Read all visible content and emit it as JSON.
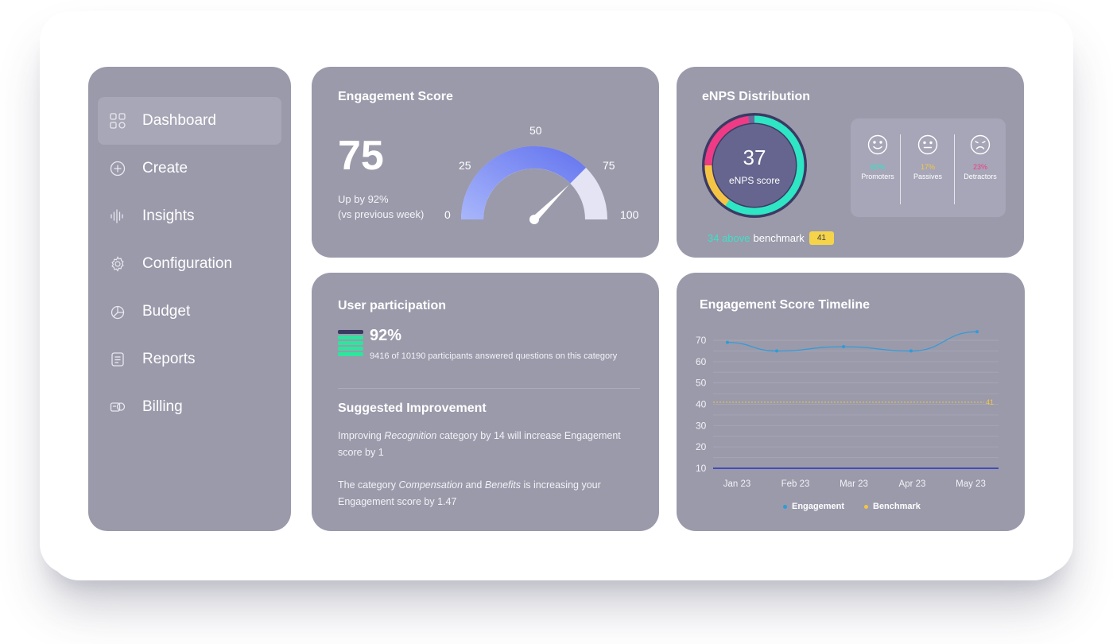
{
  "sidebar": {
    "items": [
      {
        "label": "Dashboard",
        "icon": "grid-icon",
        "active": true
      },
      {
        "label": "Create",
        "icon": "plus-circle-icon"
      },
      {
        "label": "Insights",
        "icon": "waveform-icon"
      },
      {
        "label": "Configuration",
        "icon": "gear-icon"
      },
      {
        "label": "Budget",
        "icon": "pie-chart-icon"
      },
      {
        "label": "Reports",
        "icon": "document-icon"
      },
      {
        "label": "Billing",
        "icon": "wallet-icon"
      }
    ]
  },
  "engagement": {
    "title": "Engagement Score",
    "score": "75",
    "change": "Up by 92%",
    "period": "(vs previous week)",
    "gauge_labels": {
      "min": "0",
      "q1": "25",
      "mid": "50",
      "q3": "75",
      "max": "100"
    },
    "gauge_value": 75
  },
  "enps": {
    "title": "eNPS Distribution",
    "score": "37",
    "score_label": "eNPS score",
    "categories": [
      {
        "pct": "60%",
        "name": "Promoters",
        "color": "#2ee5c4",
        "icon": "smile-icon"
      },
      {
        "pct": "17%",
        "name": "Passives",
        "color": "#f6c445",
        "icon": "neutral-face-icon"
      },
      {
        "pct": "23%",
        "name": "Detractors",
        "color": "#ef3a86",
        "icon": "sad-face-icon"
      }
    ],
    "benchmark_highlight": "34 above",
    "benchmark_text": "benchmark",
    "benchmark_value": "41"
  },
  "participation": {
    "title": "User participation",
    "percent": "92%",
    "description": "9416 of 10190 participants answered questions on this category",
    "suggestion_title": "Suggested Improvement",
    "suggestion1": {
      "pre": "Improving ",
      "em": "Recognition",
      "post": " category by 14 will increase Engagement score by 1"
    },
    "suggestion2": {
      "pre": "The category ",
      "em1": "Compensation",
      "mid": " and ",
      "em2": "Benefits",
      "post": " is increasing your Engagement score by 1.47"
    }
  },
  "timeline": {
    "title": "Engagement Score Timeline",
    "benchmark_label": "41",
    "legend": [
      {
        "label": "Engagement",
        "color": "#2f9bd9"
      },
      {
        "label": "Benchmark",
        "color": "#f6c445"
      }
    ]
  },
  "chart_data": {
    "type": "line",
    "categories": [
      "Jan 23",
      "Feb 23",
      "Mar 23",
      "Apr 23",
      "May 23"
    ],
    "x": [
      "Jan 23",
      "",
      "Feb 23",
      "",
      "Mar 23",
      "",
      "Apr 23",
      "",
      "May 23"
    ],
    "series": [
      {
        "name": "Engagement",
        "values": [
          69,
          65,
          67,
          65,
          74
        ],
        "color": "#2f9bd9"
      },
      {
        "name": "Benchmark",
        "values": [
          41,
          41,
          41,
          41,
          41
        ],
        "color": "#f6c445"
      }
    ],
    "yticks": [
      10,
      20,
      30,
      40,
      50,
      60,
      70
    ],
    "ylim": [
      10,
      75
    ],
    "grid": true,
    "legend": "bottom"
  }
}
